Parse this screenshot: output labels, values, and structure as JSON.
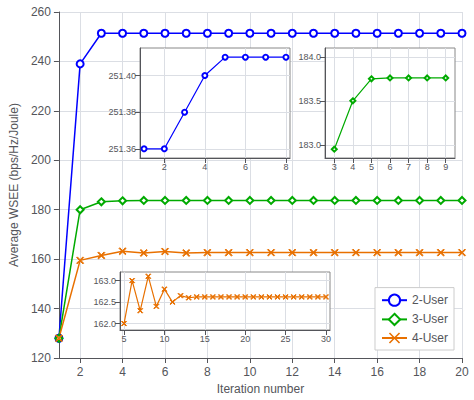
{
  "chart_data": [
    {
      "type": "line",
      "xlabel": "Iteration number",
      "ylabel": "Average WSEE (bps/Hz/Joule)",
      "x": [
        1,
        2,
        3,
        4,
        5,
        6,
        7,
        8,
        9,
        10,
        11,
        12,
        13,
        14,
        15,
        16,
        17,
        18,
        19,
        20
      ],
      "series": [
        {
          "name": "2-User",
          "color": "#0000FF",
          "marker": "circle",
          "values": [
            128,
            239,
            251.4,
            251.4,
            251.4,
            251.4,
            251.4,
            251.4,
            251.4,
            251.4,
            251.4,
            251.4,
            251.4,
            251.4,
            251.4,
            251.4,
            251.4,
            251.4,
            251.4,
            251.4
          ]
        },
        {
          "name": "3-User",
          "color": "#00AA00",
          "marker": "diamond",
          "values": [
            128,
            180,
            183.2,
            183.6,
            183.76,
            183.76,
            183.76,
            183.76,
            183.76,
            183.76,
            183.76,
            183.76,
            183.76,
            183.76,
            183.76,
            183.76,
            183.76,
            183.76,
            183.76,
            183.76
          ]
        },
        {
          "name": "4-User",
          "color": "#E87000",
          "marker": "x",
          "values": [
            128,
            159.5,
            161.5,
            163.2,
            162.5,
            163.1,
            162.5,
            162.65,
            162.65,
            162.65,
            162.65,
            162.65,
            162.65,
            162.65,
            162.65,
            162.65,
            162.65,
            162.65,
            162.65,
            162.65
          ]
        }
      ],
      "xlim": [
        1,
        20
      ],
      "xticks": [
        2,
        4,
        6,
        8,
        10,
        12,
        14,
        16,
        18,
        20
      ],
      "ylim": [
        120,
        260
      ],
      "yticks": [
        120,
        140,
        160,
        180,
        200,
        220,
        240,
        260
      ],
      "grid": true,
      "legend": "lower right"
    },
    {
      "type": "line",
      "x": [
        1,
        2,
        3,
        4,
        5,
        6,
        7,
        8
      ],
      "series": [
        {
          "color": "#0000FF",
          "marker": "circle",
          "values": [
            251.36,
            251.36,
            251.38,
            251.4,
            251.41,
            251.41,
            251.41,
            251.41
          ]
        }
      ],
      "xlim": [
        0.8,
        8.2
      ],
      "xticks": [
        2,
        4,
        6,
        8
      ],
      "ylim": [
        251.355,
        251.415
      ],
      "yticks": [
        251.36,
        251.38,
        {
          "value": 251.4,
          "label": "251.40"
        }
      ],
      "grid": true
    },
    {
      "type": "line",
      "x": [
        3,
        4,
        5,
        6,
        7,
        8,
        9
      ],
      "series": [
        {
          "color": "#00AA00",
          "marker": "diamond",
          "values": [
            182.95,
            183.5,
            183.75,
            183.76,
            183.76,
            183.76,
            183.76
          ]
        }
      ],
      "xlim": [
        2.5,
        9.5
      ],
      "xticks": [
        3,
        4,
        5,
        6,
        7,
        8,
        9
      ],
      "ylim": [
        182.85,
        184.1
      ],
      "yticks": [
        {
          "value": 183,
          "label": "183.0"
        },
        183.5,
        {
          "value": 184,
          "label": "184.0"
        }
      ],
      "grid": true
    },
    {
      "type": "line",
      "x": [
        5,
        6,
        7,
        8,
        9,
        10,
        11,
        12,
        13,
        14,
        15,
        16,
        17,
        18,
        19,
        20,
        21,
        22,
        23,
        24,
        25,
        26,
        27,
        28,
        29,
        30
      ],
      "series": [
        {
          "color": "#E87000",
          "marker": "x",
          "values": [
            162.0,
            163.0,
            162.3,
            163.1,
            162.4,
            162.8,
            162.5,
            162.65,
            162.6,
            162.62,
            162.62,
            162.62,
            162.62,
            162.62,
            162.62,
            162.62,
            162.62,
            162.62,
            162.62,
            162.62,
            162.62,
            162.62,
            162.62,
            162.62,
            162.62,
            162.62
          ]
        }
      ],
      "xlim": [
        4.5,
        30.5
      ],
      "xticks": [
        5,
        10,
        15,
        20,
        25,
        30
      ],
      "ylim": [
        161.85,
        163.2
      ],
      "yticks": [
        {
          "value": 162,
          "label": "162.0"
        },
        162.5,
        {
          "value": 163,
          "label": "163.0"
        }
      ],
      "grid": true
    }
  ]
}
